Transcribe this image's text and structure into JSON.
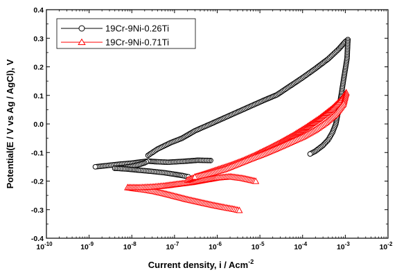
{
  "chart_data": {
    "type": "scatter",
    "x_scale": "log",
    "xlim": [
      1e-10,
      0.01
    ],
    "ylim": [
      -0.4,
      0.4
    ],
    "xlabel": "Current density, i / Acm",
    "xlabel_superscript": "-2",
    "ylabel": "Potential(E / V vs Ag / AgCl), V",
    "x_ticks": [
      {
        "label": "10",
        "exp": "-10",
        "value": 1e-10
      },
      {
        "label": "10",
        "exp": "-9",
        "value": 1e-09
      },
      {
        "label": "10",
        "exp": "-8",
        "value": 1e-08
      },
      {
        "label": "10",
        "exp": "-7",
        "value": 1e-07
      },
      {
        "label": "10",
        "exp": "-6",
        "value": 1e-06
      },
      {
        "label": "10",
        "exp": "-5",
        "value": 1e-05
      },
      {
        "label": "10",
        "exp": "-4",
        "value": 0.0001
      },
      {
        "label": "10",
        "exp": "-3",
        "value": 0.001
      },
      {
        "label": "10",
        "exp": "-2",
        "value": 0.01
      }
    ],
    "y_ticks": [
      "-0.4",
      "-0.3",
      "-0.2",
      "-0.1",
      "0.0",
      "0.1",
      "0.2",
      "0.3",
      "0.4"
    ],
    "grid": false,
    "legend_position": "top-left",
    "series": [
      {
        "name": "19Cr-9Ni-0.26Ti",
        "color": "#000000",
        "marker": "circle",
        "segments": [
          {
            "x": [
              7e-07,
              3.5e-07,
              1.6e-07,
              7e-08,
              3.5e-08,
              2.4e-08
            ],
            "y": [
              -0.128,
              -0.127,
              -0.131,
              -0.134,
              -0.132,
              -0.13
            ]
          },
          {
            "x": [
              2.4e-08,
              1.6e-08,
              1e-08,
              5e-09,
              2.5e-09,
              1.4e-09
            ],
            "y": [
              -0.13,
              -0.133,
              -0.137,
              -0.141,
              -0.146,
              -0.15
            ]
          },
          {
            "x": [
              2.4e-08,
              2e-08,
              1.5e-08,
              1e-08,
              6e-09,
              4e-09
            ],
            "y": [
              -0.13,
              -0.136,
              -0.142,
              -0.148,
              -0.153,
              -0.155
            ]
          },
          {
            "x": [
              4e-09,
              8e-09,
              1.5e-08,
              3e-08,
              6e-08,
              1e-07,
              1.6e-07,
              2.1e-07
            ],
            "y": [
              -0.155,
              -0.158,
              -0.162,
              -0.166,
              -0.171,
              -0.176,
              -0.181,
              -0.185
            ]
          },
          {
            "x": [
              2.4e-08,
              4e-08,
              8e-08,
              1.5e-07,
              3e-07,
              7e-07,
              1.5e-06,
              3e-06,
              6e-06,
              1.2e-05,
              2.5e-05,
              5e-05,
              0.0001,
              0.0002,
              0.0004,
              0.0007,
              0.001,
              0.00115
            ],
            "y": [
              -0.11,
              -0.088,
              -0.066,
              -0.05,
              -0.024,
              0.0,
              0.022,
              0.042,
              0.062,
              0.082,
              0.102,
              0.132,
              0.162,
              0.194,
              0.228,
              0.262,
              0.288,
              0.295
            ]
          },
          {
            "x": [
              0.00115,
              0.0011,
              0.0009,
              0.0008,
              0.0007,
              0.0006,
              0.0005,
              0.0004,
              0.0003,
              0.0002,
              0.00015
            ],
            "y": [
              0.295,
              0.23,
              0.15,
              0.1,
              0.05,
              0.0,
              -0.03,
              -0.055,
              -0.075,
              -0.095,
              -0.105
            ]
          }
        ]
      },
      {
        "name": "19Cr-9Ni-0.71Ti",
        "color": "#ff0000",
        "marker": "triangle",
        "segments": [
          {
            "x": [
              8e-09,
              1.2e-08,
              2e-08,
              3.5e-08,
              6e-08,
              1.1e-07,
              2e-07,
              4e-07,
              8e-07,
              1.5e-06,
              2.5e-06,
              3.3e-06
            ],
            "y": [
              -0.222,
              -0.226,
              -0.23,
              -0.236,
              -0.244,
              -0.254,
              -0.264,
              -0.274,
              -0.284,
              -0.292,
              -0.298,
              -0.302
            ]
          },
          {
            "x": [
              8e-09,
              1.5e-08,
              3e-08,
              6e-08,
              1.2e-07,
              2.5e-07,
              5e-07,
              1e-06,
              2e-06,
              4e-06,
              8e-06
            ],
            "y": [
              -0.222,
              -0.222,
              -0.22,
              -0.216,
              -0.21,
              -0.204,
              -0.196,
              -0.188,
              -0.184,
              -0.19,
              -0.2
            ]
          },
          {
            "x": [
              2e-07,
              5e-07,
              1e-06,
              2e-06,
              4e-06,
              8e-06,
              1.5e-05,
              3e-05,
              6e-05,
              0.00012,
              0.00025,
              0.0005,
              0.0008,
              0.00105
            ],
            "y": [
              -0.196,
              -0.175,
              -0.16,
              -0.145,
              -0.128,
              -0.108,
              -0.088,
              -0.065,
              -0.04,
              -0.012,
              0.02,
              0.055,
              0.085,
              0.11
            ]
          },
          {
            "x": [
              0.00105,
              0.0009,
              0.0006,
              0.00035,
              0.0002,
              0.0001,
              5e-05,
              2.5e-05,
              1.2e-05,
              6e-06,
              3e-06,
              1.5e-06,
              7e-07,
              3e-07
            ],
            "y": [
              0.11,
              0.07,
              0.035,
              0.005,
              -0.02,
              -0.045,
              -0.065,
              -0.085,
              -0.105,
              -0.122,
              -0.14,
              -0.158,
              -0.172,
              -0.185
            ]
          }
        ]
      }
    ]
  }
}
